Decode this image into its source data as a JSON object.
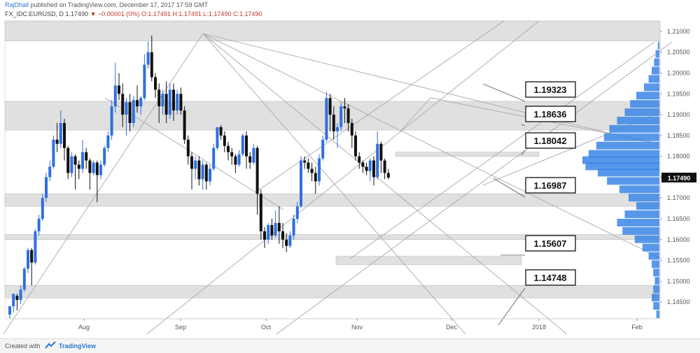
{
  "header": {
    "author": "RajDhall",
    "published": "published on TradingView.com, December 17, 2017 17:59 GMT",
    "symbol": "FX_IDC:EURUSD, D",
    "last": "1.17490",
    "change": "−0.00001 (0%)",
    "ohlc": "O:1.17491 H:1.17491 L:1.17490 C:1.17490"
  },
  "footer": {
    "created_with": "Created with",
    "brand": "TradingView"
  },
  "colors": {
    "up": "#2f6fe0",
    "down": "#111111",
    "zone": "#d6d6d6",
    "line": "#a8a8a8",
    "volume_profile": "#3a86e8",
    "label_border": "#222222"
  },
  "chart_data": {
    "type": "candlestick",
    "x_axis": {
      "ticks": [
        "Aug",
        "Sep",
        "Oct",
        "Nov",
        "Dec",
        "2018",
        "Feb"
      ]
    },
    "y_axis": {
      "range": [
        1.141,
        1.2125
      ],
      "ticks": [
        "1.21000",
        "1.20500",
        "1.20000",
        "1.19500",
        "1.19000",
        "1.18500",
        "1.18000",
        "1.17500",
        "1.17000",
        "1.16500",
        "1.16000",
        "1.15500",
        "1.15000",
        "1.14500"
      ],
      "last_price": "1.17490"
    },
    "horizontal_zones": [
      {
        "from": 1.2077,
        "to": 1.2125
      },
      {
        "from": 1.1863,
        "to": 1.1932
      },
      {
        "from": 1.18,
        "to": 1.181
      },
      {
        "from": 1.168,
        "to": 1.171
      },
      {
        "from": 1.16,
        "to": 1.1612
      },
      {
        "from": 1.154,
        "to": 1.156
      },
      {
        "from": 1.146,
        "to": 1.149
      }
    ],
    "level_labels": [
      "1.19323",
      "1.18636",
      "1.18042",
      "1.16987",
      "1.15607",
      "1.14748"
    ],
    "candles": [
      [
        1.142,
        1.144,
        1.141,
        1.144
      ],
      [
        1.144,
        1.147,
        1.1425,
        1.1465
      ],
      [
        1.1465,
        1.1455,
        1.143,
        1.147
      ],
      [
        1.1455,
        1.148,
        1.1445,
        1.149
      ],
      [
        1.148,
        1.153,
        1.1475,
        1.1535
      ],
      [
        1.153,
        1.1575,
        1.152,
        1.158
      ],
      [
        1.1575,
        1.1545,
        1.149,
        1.158
      ],
      [
        1.1545,
        1.162,
        1.154,
        1.1625
      ],
      [
        1.162,
        1.165,
        1.161,
        1.166
      ],
      [
        1.165,
        1.17,
        1.1645,
        1.171
      ],
      [
        1.17,
        1.175,
        1.169,
        1.176
      ],
      [
        1.175,
        1.1775,
        1.174,
        1.179
      ],
      [
        1.1775,
        1.184,
        1.177,
        1.185
      ],
      [
        1.184,
        1.183,
        1.181,
        1.188
      ],
      [
        1.183,
        1.188,
        1.182,
        1.191
      ],
      [
        1.188,
        1.182,
        1.179,
        1.189
      ],
      [
        1.182,
        1.176,
        1.1745,
        1.1825
      ],
      [
        1.176,
        1.18,
        1.175,
        1.181
      ],
      [
        1.18,
        1.178,
        1.172,
        1.1805
      ],
      [
        1.178,
        1.177,
        1.1745,
        1.179
      ],
      [
        1.177,
        1.181,
        1.176,
        1.184
      ],
      [
        1.181,
        1.179,
        1.177,
        1.182
      ],
      [
        1.179,
        1.176,
        1.172,
        1.1795
      ],
      [
        1.176,
        1.1785,
        1.1755,
        1.179
      ],
      [
        1.1785,
        1.1755,
        1.169,
        1.179
      ],
      [
        1.1755,
        1.178,
        1.1745,
        1.179
      ],
      [
        1.178,
        1.182,
        1.1775,
        1.1825
      ],
      [
        1.182,
        1.185,
        1.181,
        1.186
      ],
      [
        1.185,
        1.192,
        1.184,
        1.1935
      ],
      [
        1.192,
        1.197,
        1.1905,
        1.2025
      ],
      [
        1.197,
        1.195,
        1.1935,
        1.2
      ],
      [
        1.195,
        1.19,
        1.187,
        1.1975
      ],
      [
        1.19,
        1.193,
        1.185,
        1.194
      ],
      [
        1.193,
        1.188,
        1.186,
        1.195
      ],
      [
        1.188,
        1.1935,
        1.187,
        1.1945
      ],
      [
        1.1935,
        1.192,
        1.1905,
        1.197
      ],
      [
        1.192,
        1.194,
        1.19,
        1.1945
      ],
      [
        1.194,
        1.202,
        1.1935,
        1.2045
      ],
      [
        1.202,
        1.205,
        1.201,
        1.2075
      ],
      [
        1.205,
        1.199,
        1.198,
        1.209
      ],
      [
        1.199,
        1.196,
        1.194,
        1.2
      ],
      [
        1.196,
        1.192,
        1.188,
        1.1975
      ],
      [
        1.192,
        1.195,
        1.19,
        1.196
      ],
      [
        1.195,
        1.19,
        1.188,
        1.198
      ],
      [
        1.19,
        1.196,
        1.189,
        1.1975
      ],
      [
        1.196,
        1.191,
        1.1885,
        1.1975
      ],
      [
        1.191,
        1.195,
        1.19,
        1.196
      ],
      [
        1.195,
        1.191,
        1.19,
        1.1965
      ],
      [
        1.191,
        1.184,
        1.183,
        1.192
      ],
      [
        1.184,
        1.18,
        1.178,
        1.185
      ],
      [
        1.18,
        1.177,
        1.172,
        1.181
      ],
      [
        1.177,
        1.179,
        1.1745,
        1.18
      ],
      [
        1.179,
        1.1745,
        1.173,
        1.18
      ],
      [
        1.1745,
        1.178,
        1.172,
        1.179
      ],
      [
        1.178,
        1.174,
        1.172,
        1.1785
      ],
      [
        1.174,
        1.177,
        1.173,
        1.178
      ],
      [
        1.177,
        1.182,
        1.1765,
        1.183
      ],
      [
        1.182,
        1.187,
        1.1815,
        1.187
      ],
      [
        1.187,
        1.185,
        1.184,
        1.1875
      ],
      [
        1.185,
        1.1825,
        1.181,
        1.186
      ],
      [
        1.1825,
        1.181,
        1.179,
        1.1835
      ],
      [
        1.181,
        1.18,
        1.178,
        1.182
      ],
      [
        1.18,
        1.178,
        1.176,
        1.1805
      ],
      [
        1.178,
        1.1805,
        1.1775,
        1.1815
      ],
      [
        1.1805,
        1.185,
        1.18,
        1.1855
      ],
      [
        1.185,
        1.18,
        1.177,
        1.186
      ],
      [
        1.18,
        1.1785,
        1.177,
        1.181
      ],
      [
        1.1785,
        1.182,
        1.178,
        1.183
      ],
      [
        1.182,
        1.171,
        1.166,
        1.1825
      ],
      [
        1.171,
        1.162,
        1.16,
        1.172
      ],
      [
        1.162,
        1.16,
        1.158,
        1.163
      ],
      [
        1.16,
        1.1635,
        1.159,
        1.164
      ],
      [
        1.1635,
        1.161,
        1.16,
        1.165
      ],
      [
        1.161,
        1.164,
        1.1605,
        1.167
      ],
      [
        1.164,
        1.162,
        1.159,
        1.168
      ],
      [
        1.162,
        1.16,
        1.158,
        1.164
      ],
      [
        1.16,
        1.1585,
        1.157,
        1.1615
      ],
      [
        1.1585,
        1.161,
        1.158,
        1.162
      ],
      [
        1.161,
        1.165,
        1.16,
        1.166
      ],
      [
        1.165,
        1.168,
        1.164,
        1.169
      ],
      [
        1.168,
        1.179,
        1.1675,
        1.18
      ],
      [
        1.179,
        1.1785,
        1.177,
        1.18
      ],
      [
        1.1785,
        1.177,
        1.176,
        1.1795
      ],
      [
        1.177,
        1.176,
        1.174,
        1.1785
      ],
      [
        1.176,
        1.174,
        1.171,
        1.1775
      ],
      [
        1.174,
        1.1795,
        1.173,
        1.1805
      ],
      [
        1.1795,
        1.184,
        1.179,
        1.185
      ],
      [
        1.184,
        1.194,
        1.1835,
        1.1955
      ],
      [
        1.194,
        1.19,
        1.186,
        1.195
      ],
      [
        1.19,
        1.186,
        1.184,
        1.192
      ],
      [
        1.186,
        1.187,
        1.182,
        1.188
      ],
      [
        1.187,
        1.192,
        1.186,
        1.193
      ],
      [
        1.192,
        1.1915,
        1.188,
        1.194
      ],
      [
        1.1915,
        1.188,
        1.186,
        1.1925
      ],
      [
        1.188,
        1.185,
        1.182,
        1.189
      ],
      [
        1.185,
        1.18,
        1.179,
        1.186
      ],
      [
        1.18,
        1.1785,
        1.177,
        1.181
      ],
      [
        1.1785,
        1.1775,
        1.176,
        1.179
      ],
      [
        1.1775,
        1.1765,
        1.1755,
        1.1785
      ],
      [
        1.1765,
        1.179,
        1.174,
        1.1795
      ],
      [
        1.179,
        1.175,
        1.173,
        1.18
      ],
      [
        1.175,
        1.183,
        1.1745,
        1.186
      ],
      [
        1.183,
        1.179,
        1.176,
        1.1835
      ],
      [
        1.179,
        1.176,
        1.1745,
        1.1795
      ],
      [
        1.176,
        1.1749,
        1.1745,
        1.177
      ]
    ],
    "volume_profile": [
      {
        "price": 1.2065,
        "v": 2
      },
      {
        "price": 1.2045,
        "v": 5
      },
      {
        "price": 1.2025,
        "v": 7
      },
      {
        "price": 1.2005,
        "v": 10
      },
      {
        "price": 1.1985,
        "v": 14
      },
      {
        "price": 1.1965,
        "v": 20
      },
      {
        "price": 1.1945,
        "v": 30
      },
      {
        "price": 1.1925,
        "v": 38
      },
      {
        "price": 1.1905,
        "v": 45
      },
      {
        "price": 1.1885,
        "v": 55
      },
      {
        "price": 1.1865,
        "v": 65
      },
      {
        "price": 1.1845,
        "v": 72
      },
      {
        "price": 1.1825,
        "v": 82
      },
      {
        "price": 1.1805,
        "v": 92
      },
      {
        "price": 1.179,
        "v": 100
      },
      {
        "price": 1.1775,
        "v": 96
      },
      {
        "price": 1.176,
        "v": 80
      },
      {
        "price": 1.174,
        "v": 68
      },
      {
        "price": 1.172,
        "v": 52
      },
      {
        "price": 1.17,
        "v": 40
      },
      {
        "price": 1.168,
        "v": 30
      },
      {
        "price": 1.166,
        "v": 45
      },
      {
        "price": 1.164,
        "v": 55
      },
      {
        "price": 1.162,
        "v": 48
      },
      {
        "price": 1.16,
        "v": 32
      },
      {
        "price": 1.158,
        "v": 22
      },
      {
        "price": 1.156,
        "v": 14
      },
      {
        "price": 1.154,
        "v": 10
      },
      {
        "price": 1.152,
        "v": 8
      },
      {
        "price": 1.15,
        "v": 6
      },
      {
        "price": 1.148,
        "v": 8
      },
      {
        "price": 1.146,
        "v": 10
      },
      {
        "price": 1.144,
        "v": 8
      },
      {
        "price": 1.142,
        "v": 4
      }
    ]
  }
}
